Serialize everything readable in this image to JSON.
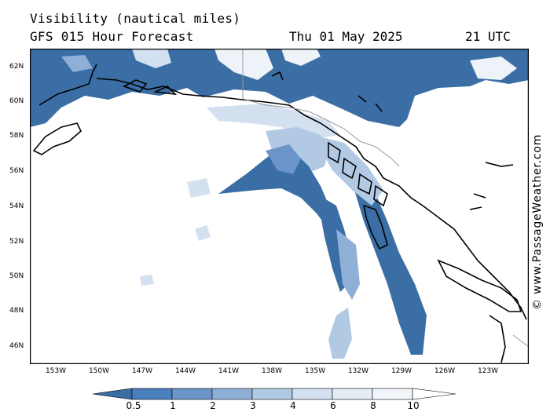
{
  "header": {
    "title": "Visibility (nautical miles)",
    "subtitle": "GFS 015 Hour Forecast",
    "date": "Thu 01 May 2025",
    "time": "21 UTC"
  },
  "credit": "© www.PassageWeather.com",
  "lat_labels": [
    "62N",
    "60N",
    "58N",
    "56N",
    "54N",
    "52N",
    "50N",
    "48N",
    "46N"
  ],
  "lon_labels": [
    "153W",
    "150W",
    "147W",
    "144W",
    "141W",
    "138W",
    "135W",
    "132W",
    "129W",
    "126W",
    "123W"
  ],
  "colorbar": {
    "labels": [
      "0.5",
      "1",
      "2",
      "3",
      "4",
      "6",
      "8",
      "10"
    ],
    "colors": [
      "#3a6ea5",
      "#4a7fbd",
      "#6b95c9",
      "#8eafd6",
      "#b2c9e4",
      "#d3e0f0",
      "#eef3f9"
    ]
  },
  "colors": {
    "coast": "#000000",
    "border": "#9a9a9a",
    "frame": "#000000"
  }
}
